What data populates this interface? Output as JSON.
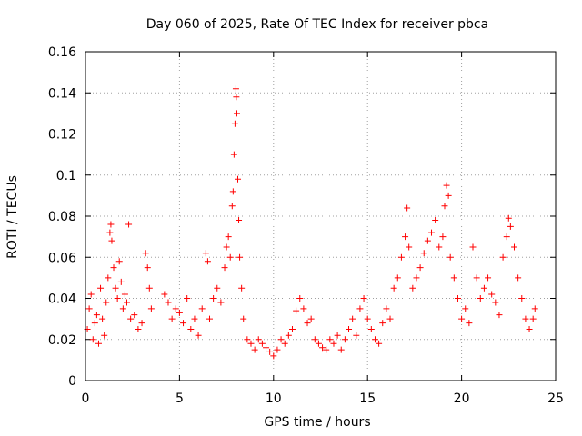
{
  "chart_data": {
    "type": "scatter",
    "title": "Day 060 of 2025, Rate Of TEC Index for receiver pbca",
    "xlabel": "GPS time / hours",
    "ylabel": "ROTI / TECUs",
    "xlim": [
      0,
      25
    ],
    "ylim": [
      0,
      0.16
    ],
    "xticks": [
      0,
      5,
      10,
      15,
      20,
      25
    ],
    "xtick_labels": [
      "0",
      "5",
      "10",
      "15",
      "20",
      "25"
    ],
    "yticks": [
      0,
      0.02,
      0.04,
      0.06,
      0.08,
      0.1,
      0.12,
      0.14,
      0.16
    ],
    "ytick_labels": [
      "0",
      "0.02",
      "0.04",
      "0.06",
      "0.08",
      "0.1",
      "0.12",
      "0.14",
      "0.16"
    ],
    "grid": true,
    "marker": "+",
    "color": "#ff0000",
    "series": [
      {
        "points": [
          [
            0.1,
            0.025
          ],
          [
            0.2,
            0.035
          ],
          [
            0.3,
            0.042
          ],
          [
            0.4,
            0.02
          ],
          [
            0.5,
            0.028
          ],
          [
            0.6,
            0.032
          ],
          [
            0.7,
            0.018
          ],
          [
            0.8,
            0.045
          ],
          [
            0.9,
            0.03
          ],
          [
            1.0,
            0.022
          ],
          [
            1.1,
            0.038
          ],
          [
            1.2,
            0.05
          ],
          [
            1.3,
            0.072
          ],
          [
            1.35,
            0.076
          ],
          [
            1.4,
            0.068
          ],
          [
            1.5,
            0.055
          ],
          [
            1.6,
            0.045
          ],
          [
            1.7,
            0.04
          ],
          [
            1.8,
            0.058
          ],
          [
            1.9,
            0.048
          ],
          [
            2.0,
            0.035
          ],
          [
            2.1,
            0.042
          ],
          [
            2.2,
            0.038
          ],
          [
            2.3,
            0.076
          ],
          [
            2.4,
            0.03
          ],
          [
            2.6,
            0.032
          ],
          [
            2.8,
            0.025
          ],
          [
            3.0,
            0.028
          ],
          [
            3.2,
            0.062
          ],
          [
            3.3,
            0.055
          ],
          [
            3.4,
            0.045
          ],
          [
            3.5,
            0.035
          ],
          [
            4.2,
            0.042
          ],
          [
            4.4,
            0.038
          ],
          [
            4.6,
            0.03
          ],
          [
            4.8,
            0.035
          ],
          [
            5.0,
            0.033
          ],
          [
            5.2,
            0.028
          ],
          [
            5.4,
            0.04
          ],
          [
            5.6,
            0.025
          ],
          [
            5.8,
            0.03
          ],
          [
            6.0,
            0.022
          ],
          [
            6.2,
            0.035
          ],
          [
            6.4,
            0.062
          ],
          [
            6.5,
            0.058
          ],
          [
            6.6,
            0.03
          ],
          [
            6.8,
            0.04
          ],
          [
            7.0,
            0.045
          ],
          [
            7.2,
            0.038
          ],
          [
            7.4,
            0.055
          ],
          [
            7.5,
            0.065
          ],
          [
            7.6,
            0.07
          ],
          [
            7.7,
            0.06
          ],
          [
            7.8,
            0.085
          ],
          [
            7.85,
            0.092
          ],
          [
            7.9,
            0.11
          ],
          [
            7.95,
            0.125
          ],
          [
            8.0,
            0.142
          ],
          [
            8.02,
            0.138
          ],
          [
            8.05,
            0.13
          ],
          [
            8.1,
            0.098
          ],
          [
            8.15,
            0.078
          ],
          [
            8.2,
            0.06
          ],
          [
            8.3,
            0.045
          ],
          [
            8.4,
            0.03
          ],
          [
            8.6,
            0.02
          ],
          [
            8.8,
            0.018
          ],
          [
            9.0,
            0.015
          ],
          [
            9.2,
            0.02
          ],
          [
            9.4,
            0.018
          ],
          [
            9.6,
            0.016
          ],
          [
            9.8,
            0.014
          ],
          [
            10.0,
            0.012
          ],
          [
            10.2,
            0.015
          ],
          [
            10.4,
            0.02
          ],
          [
            10.6,
            0.018
          ],
          [
            10.8,
            0.022
          ],
          [
            11.0,
            0.025
          ],
          [
            11.2,
            0.034
          ],
          [
            11.4,
            0.04
          ],
          [
            11.6,
            0.035
          ],
          [
            11.8,
            0.028
          ],
          [
            12.0,
            0.03
          ],
          [
            12.2,
            0.02
          ],
          [
            12.4,
            0.018
          ],
          [
            12.6,
            0.016
          ],
          [
            12.8,
            0.015
          ],
          [
            13.0,
            0.02
          ],
          [
            13.2,
            0.018
          ],
          [
            13.4,
            0.022
          ],
          [
            13.6,
            0.015
          ],
          [
            13.8,
            0.02
          ],
          [
            14.0,
            0.025
          ],
          [
            14.2,
            0.03
          ],
          [
            14.4,
            0.022
          ],
          [
            14.6,
            0.035
          ],
          [
            14.8,
            0.04
          ],
          [
            15.0,
            0.03
          ],
          [
            15.2,
            0.025
          ],
          [
            15.4,
            0.02
          ],
          [
            15.6,
            0.018
          ],
          [
            15.8,
            0.028
          ],
          [
            16.0,
            0.035
          ],
          [
            16.2,
            0.03
          ],
          [
            16.4,
            0.045
          ],
          [
            16.6,
            0.05
          ],
          [
            16.8,
            0.06
          ],
          [
            17.0,
            0.07
          ],
          [
            17.1,
            0.084
          ],
          [
            17.2,
            0.065
          ],
          [
            17.4,
            0.045
          ],
          [
            17.6,
            0.05
          ],
          [
            17.8,
            0.055
          ],
          [
            18.0,
            0.062
          ],
          [
            18.2,
            0.068
          ],
          [
            18.4,
            0.072
          ],
          [
            18.6,
            0.078
          ],
          [
            18.8,
            0.065
          ],
          [
            19.0,
            0.07
          ],
          [
            19.1,
            0.085
          ],
          [
            19.2,
            0.095
          ],
          [
            19.3,
            0.09
          ],
          [
            19.4,
            0.06
          ],
          [
            19.6,
            0.05
          ],
          [
            19.8,
            0.04
          ],
          [
            20.0,
            0.03
          ],
          [
            20.2,
            0.035
          ],
          [
            20.4,
            0.028
          ],
          [
            20.6,
            0.065
          ],
          [
            20.8,
            0.05
          ],
          [
            21.0,
            0.04
          ],
          [
            21.2,
            0.045
          ],
          [
            21.4,
            0.05
          ],
          [
            21.6,
            0.042
          ],
          [
            21.8,
            0.038
          ],
          [
            22.0,
            0.032
          ],
          [
            22.2,
            0.06
          ],
          [
            22.4,
            0.07
          ],
          [
            22.5,
            0.079
          ],
          [
            22.6,
            0.075
          ],
          [
            22.8,
            0.065
          ],
          [
            23.0,
            0.05
          ],
          [
            23.2,
            0.04
          ],
          [
            23.4,
            0.03
          ],
          [
            23.6,
            0.025
          ],
          [
            23.8,
            0.03
          ],
          [
            23.9,
            0.035
          ]
        ]
      }
    ]
  }
}
